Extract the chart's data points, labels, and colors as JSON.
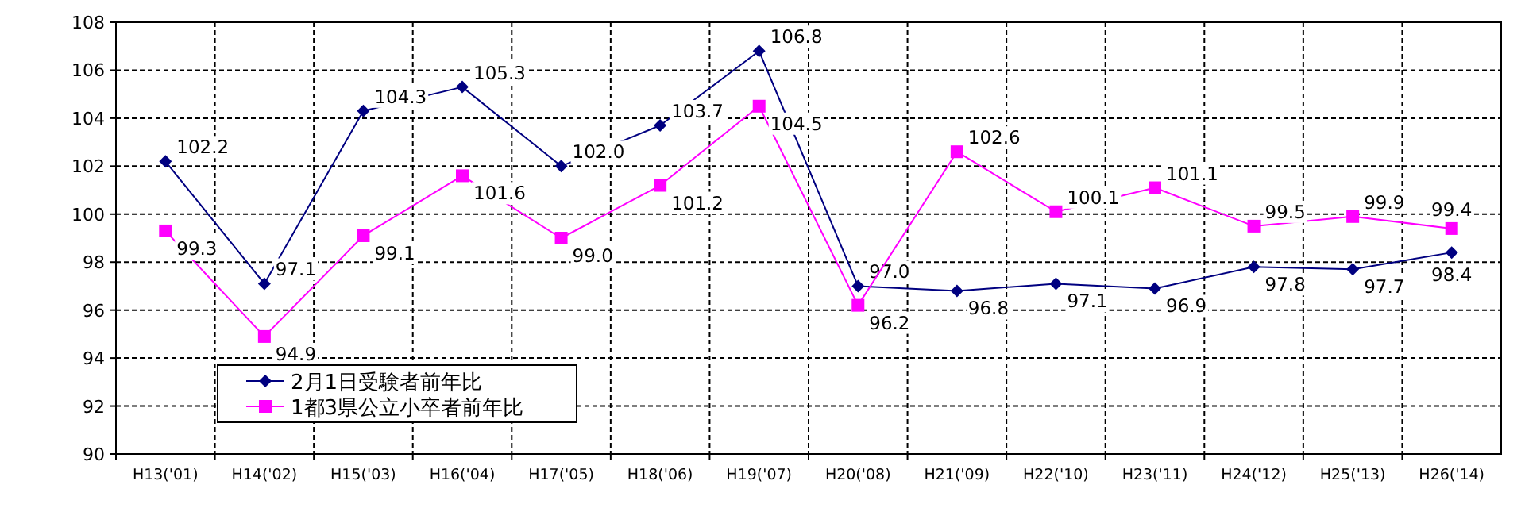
{
  "chart_data": {
    "type": "line",
    "categories": [
      "H13('01)",
      "H14('02)",
      "H15('03)",
      "H16('04)",
      "H17('05)",
      "H18('06)",
      "H19('07)",
      "H20('08)",
      "H21('09)",
      "H22('10)",
      "H23('11)",
      "H24('12)",
      "H25('13)",
      "H26('14)"
    ],
    "series": [
      {
        "name": "2月1日受験者前年比",
        "color": "#000080",
        "marker": "diamond",
        "values": [
          102.2,
          97.1,
          104.3,
          105.3,
          102.0,
          103.7,
          106.8,
          97.0,
          96.8,
          97.1,
          96.9,
          97.8,
          97.7,
          98.4
        ],
        "value_labels": [
          "102.2",
          "97.1",
          "104.3",
          "105.3",
          "102.0",
          "103.7",
          "106.8",
          "97.0",
          "96.8",
          "97.1",
          "96.9",
          "97.8",
          "97.7",
          "98.4"
        ]
      },
      {
        "name": "1都3県公立小卒者前年比",
        "color": "#ff00ff",
        "marker": "square",
        "values": [
          99.3,
          94.9,
          99.1,
          101.6,
          99.0,
          101.2,
          104.5,
          96.2,
          102.6,
          100.1,
          101.1,
          99.5,
          99.9,
          99.4
        ],
        "value_labels": [
          "99.3",
          "94.9",
          "99.1",
          "101.6",
          "99.0",
          "101.2",
          "104.5",
          "96.2",
          "102.6",
          "100.1",
          "101.1",
          "99.5",
          "99.9",
          "99.4"
        ]
      }
    ],
    "ylim": [
      90,
      108
    ],
    "yticks": [
      90,
      92,
      94,
      96,
      98,
      100,
      102,
      104,
      106,
      108
    ],
    "grid": true,
    "legend": "bottom left",
    "line_style": "solid"
  }
}
